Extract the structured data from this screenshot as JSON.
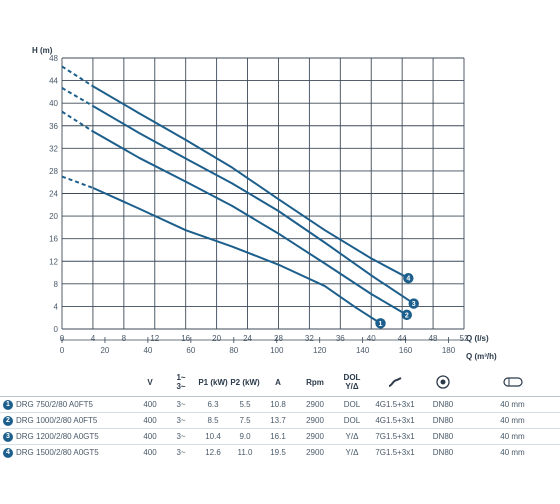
{
  "chart_data": {
    "type": "line",
    "ylabel": "H (m)",
    "xlabel": "Q (l/s)",
    "x2label": "Q (m³/h)",
    "xlim": [
      0,
      52
    ],
    "ylim": [
      0,
      48
    ],
    "x_ticks": [
      0,
      4,
      8,
      12,
      16,
      20,
      24,
      28,
      32,
      36,
      40,
      44,
      48,
      52
    ],
    "y_ticks": [
      0,
      4,
      8,
      12,
      16,
      20,
      24,
      28,
      32,
      36,
      40,
      44,
      48
    ],
    "x2_ticks": [
      0,
      20,
      40,
      60,
      80,
      100,
      120,
      140,
      160,
      180
    ],
    "grid": true,
    "line_color": "#1d5f8c",
    "series": [
      {
        "marker": "1",
        "dash": [
          [
            0,
            27
          ],
          [
            4,
            25
          ]
        ],
        "points": [
          [
            4,
            25
          ],
          [
            10,
            21.3
          ],
          [
            16,
            17.5
          ],
          [
            22,
            14.6
          ],
          [
            28,
            11.4
          ],
          [
            34,
            7.6
          ],
          [
            38,
            3.8
          ],
          [
            41.2,
            1
          ]
        ]
      },
      {
        "marker": "2",
        "dash": [
          [
            0,
            38.5
          ],
          [
            4,
            35
          ]
        ],
        "points": [
          [
            4,
            35
          ],
          [
            10,
            30.3
          ],
          [
            16,
            26.1
          ],
          [
            22,
            21.8
          ],
          [
            28,
            16.9
          ],
          [
            34,
            11.6
          ],
          [
            40,
            6.2
          ],
          [
            44.6,
            2.5
          ]
        ]
      },
      {
        "marker": "3",
        "dash": [
          [
            0,
            42.7
          ],
          [
            4,
            39.5
          ]
        ],
        "points": [
          [
            4,
            39.5
          ],
          [
            10,
            34.7
          ],
          [
            16,
            30.2
          ],
          [
            22,
            25.8
          ],
          [
            28,
            20.9
          ],
          [
            34,
            15.3
          ],
          [
            40,
            9.5
          ],
          [
            45.5,
            4.5
          ]
        ]
      },
      {
        "marker": "4",
        "dash": [
          [
            0,
            46.5
          ],
          [
            4,
            43
          ]
        ],
        "points": [
          [
            4,
            43
          ],
          [
            10,
            38.2
          ],
          [
            16,
            33.5
          ],
          [
            22,
            28.6
          ],
          [
            28,
            23
          ],
          [
            34,
            17.5
          ],
          [
            40,
            12.5
          ],
          [
            44.8,
            9
          ]
        ]
      }
    ]
  },
  "table": {
    "headers": {
      "v": "V",
      "phase_top": "1~",
      "phase_bottom": "3~",
      "p1": "P1 (kW)",
      "p2": "P2 (kW)",
      "a": "A",
      "rpm": "Rpm",
      "dol_top": "DOL",
      "dol_bottom": "Y/Δ",
      "cable_icon": "cable-icon",
      "flange_icon": "flange-icon",
      "diameter_icon": "diameter-icon"
    },
    "rows": [
      {
        "num": "1",
        "model": "DRG 750/2/80 A0FT5",
        "v": "400",
        "phase": "3~",
        "p1": "6.3",
        "p2": "5.5",
        "a": "10.8",
        "rpm": "2900",
        "start": "DOL",
        "cable": "4G1.5+3x1",
        "dn": "DN80",
        "diam": "40 mm"
      },
      {
        "num": "2",
        "model": "DRG 1000/2/80 A0FT5",
        "v": "400",
        "phase": "3~",
        "p1": "8.5",
        "p2": "7.5",
        "a": "13.7",
        "rpm": "2900",
        "start": "DOL",
        "cable": "4G1.5+3x1",
        "dn": "DN80",
        "diam": "40 mm"
      },
      {
        "num": "3",
        "model": "DRG 1200/2/80 A0GT5",
        "v": "400",
        "phase": "3~",
        "p1": "10.4",
        "p2": "9.0",
        "a": "16.1",
        "rpm": "2900",
        "start": "Y/Δ",
        "cable": "7G1.5+3x1",
        "dn": "DN80",
        "diam": "40 mm"
      },
      {
        "num": "4",
        "model": "DRG 1500/2/80 A0GT5",
        "v": "400",
        "phase": "3~",
        "p1": "12.6",
        "p2": "11.0",
        "a": "19.5",
        "rpm": "2900",
        "start": "Y/Δ",
        "cable": "7G1.5+3x1",
        "dn": "DN80",
        "diam": "40 mm"
      }
    ]
  }
}
